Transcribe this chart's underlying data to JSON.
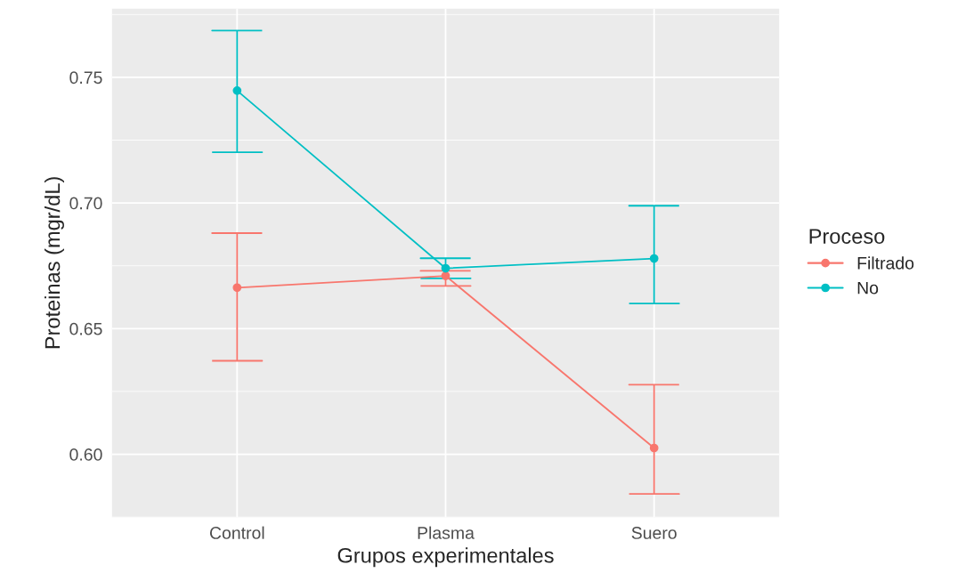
{
  "chart_data": {
    "type": "line",
    "xlabel": "Grupos experimentales",
    "ylabel": "Proteinas (mgr/dL)",
    "legend_title": "Proceso",
    "categories": [
      "Control",
      "Plasma",
      "Suero"
    ],
    "series": [
      {
        "name": "Filtrado",
        "color": "#f8766d",
        "values": [
          0.6663,
          0.671,
          0.6025
        ],
        "errors": [
          [
            0.6372,
            0.688
          ],
          [
            0.667,
            0.673
          ],
          [
            0.5842,
            0.6277
          ]
        ]
      },
      {
        "name": "No",
        "color": "#00bfc4",
        "values": [
          0.7447,
          0.674,
          0.6779
        ],
        "errors": [
          [
            0.7202,
            0.7686
          ],
          [
            0.67,
            0.678
          ],
          [
            0.66,
            0.6989
          ]
        ]
      }
    ],
    "ylim": [
      0.5762,
      0.7773
    ],
    "yticks": [
      {
        "value": 0.6,
        "label": "0.60"
      },
      {
        "value": 0.65,
        "label": "0.65"
      },
      {
        "value": 0.7,
        "label": "0.70"
      },
      {
        "value": 0.75,
        "label": "0.75"
      }
    ],
    "grid": true,
    "legend": "right",
    "marker": "circle",
    "line_style": "solid"
  }
}
